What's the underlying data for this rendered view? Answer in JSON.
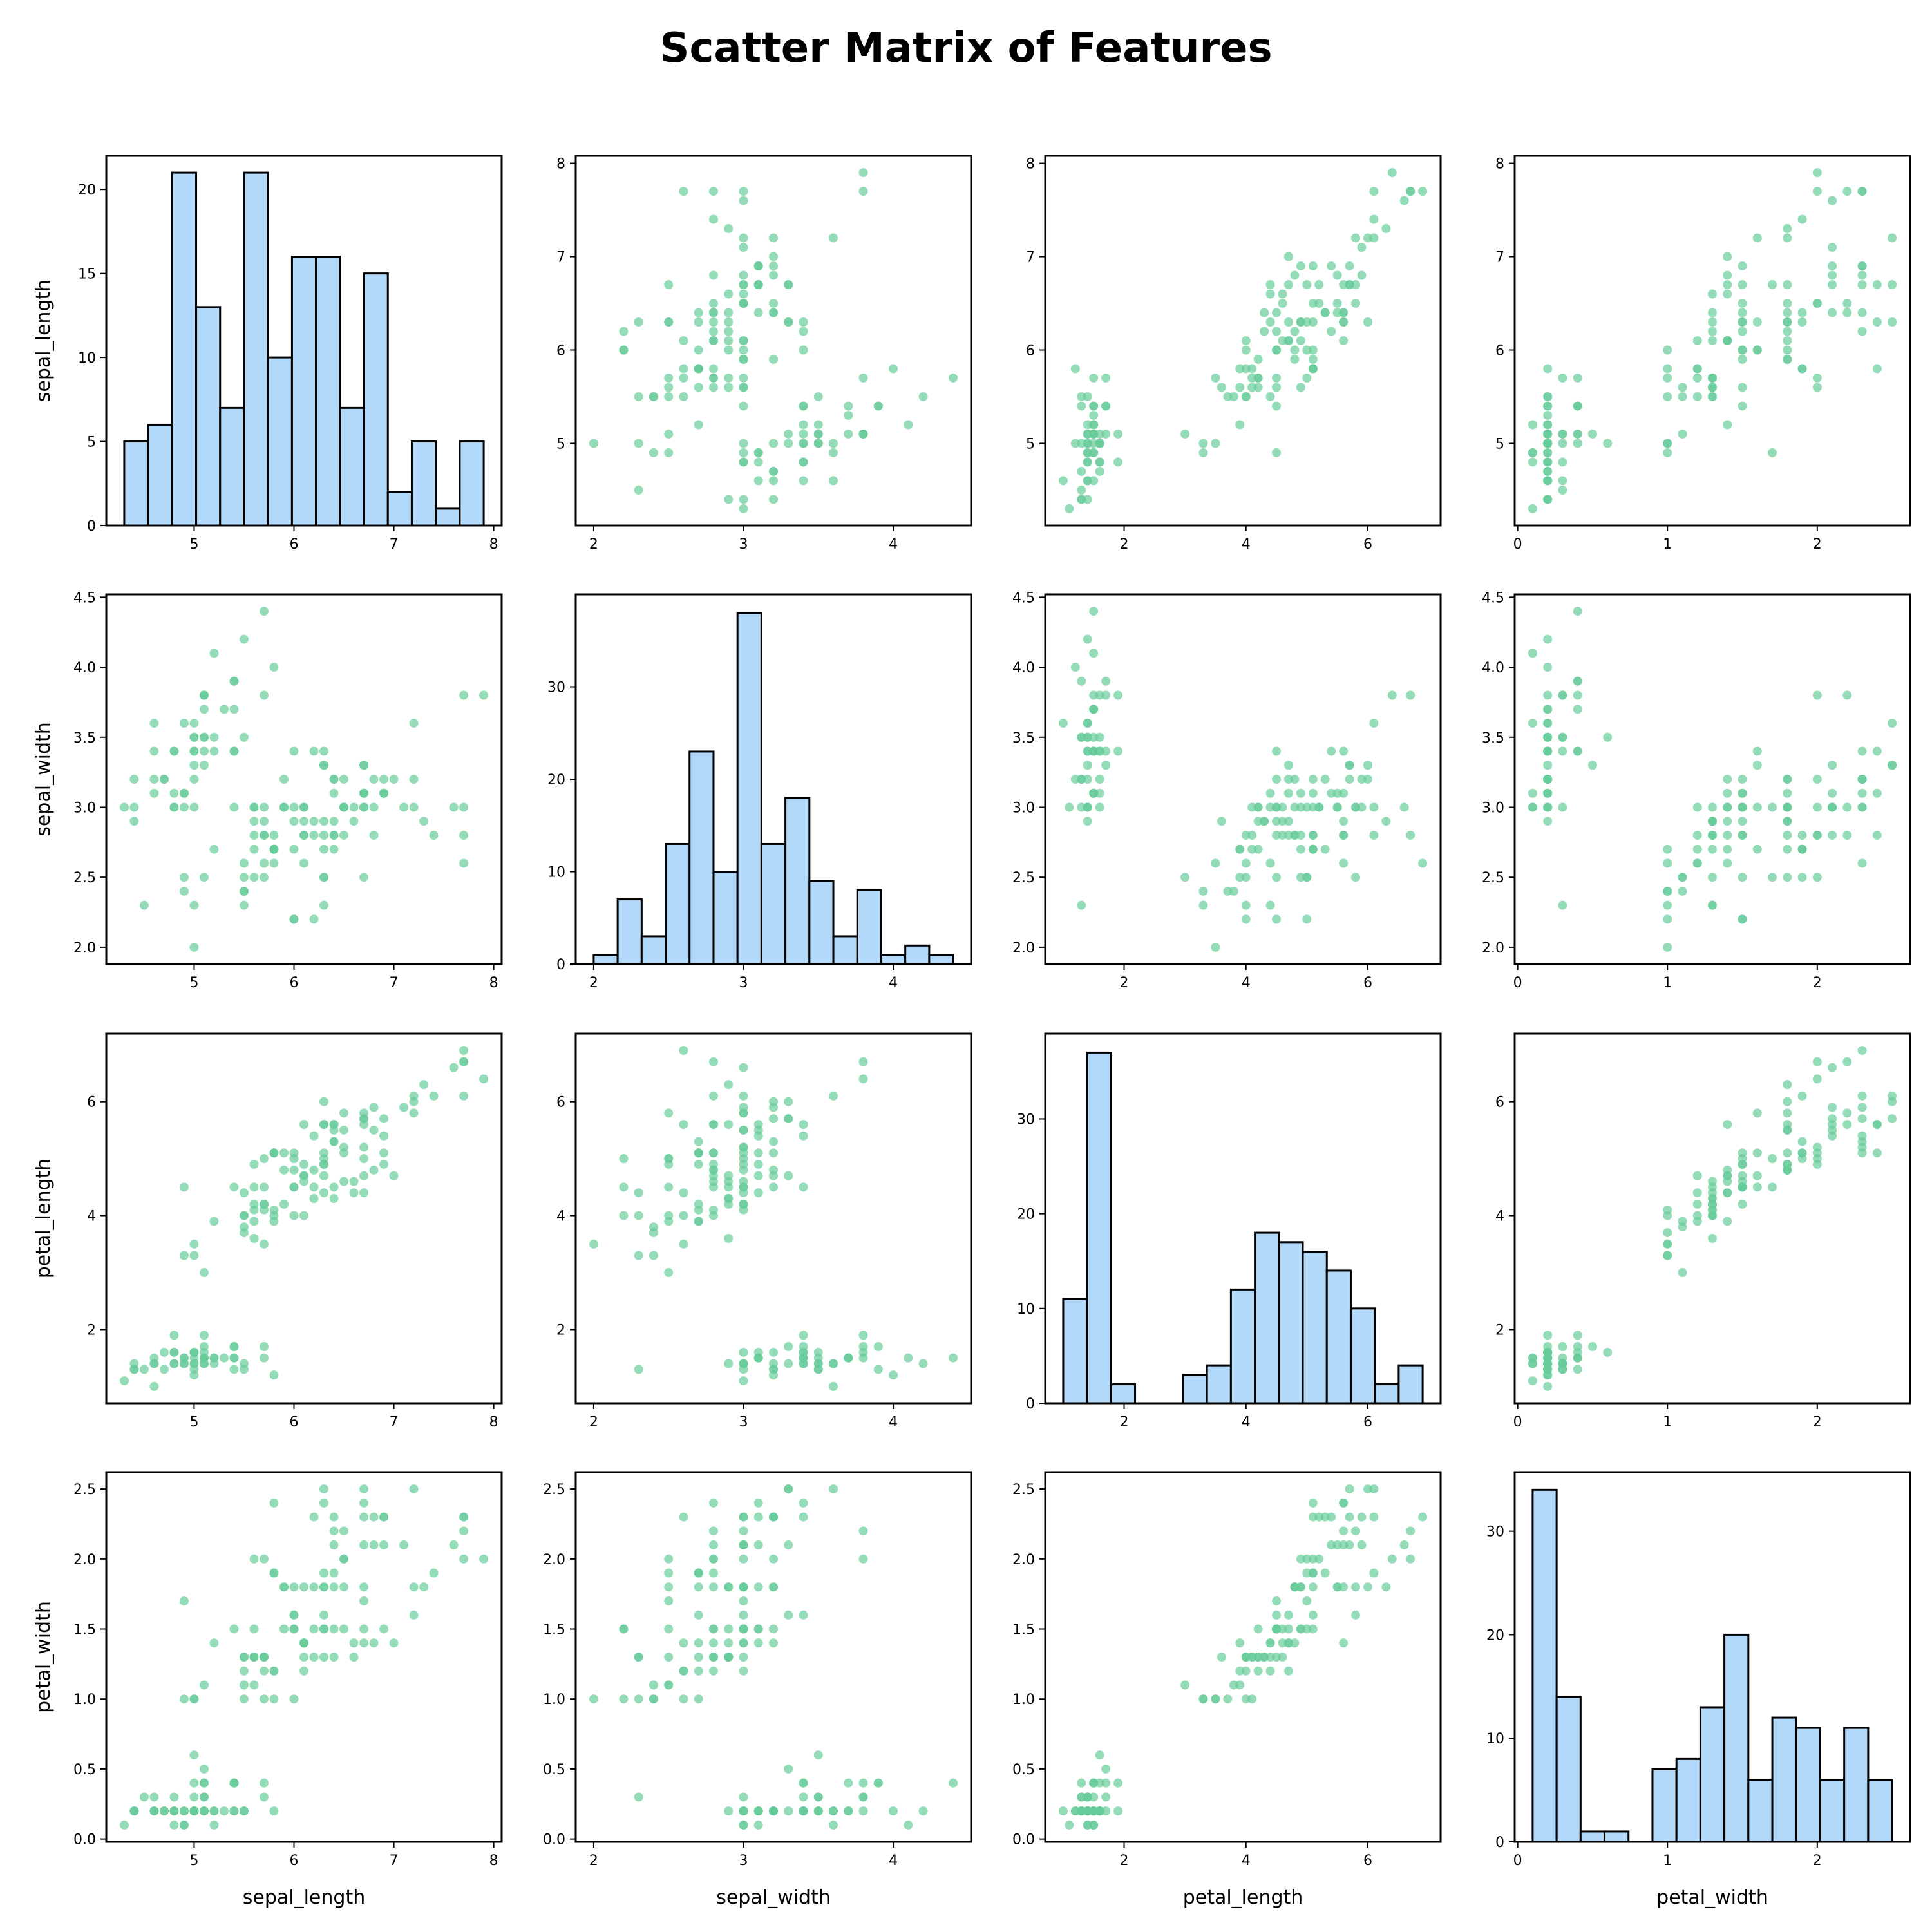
{
  "chart_data": {
    "type": "scatter_matrix",
    "title": "Scatter Matrix of Features",
    "features": [
      "sepal_length",
      "sepal_width",
      "petal_length",
      "petal_width"
    ],
    "diagonal": "histogram",
    "colors": {
      "scatter": "#66cc99",
      "hist_fill": "#b3d9fa",
      "hist_edge": "#000000"
    },
    "axes": {
      "sepal_length": {
        "lim": [
          4.12,
          8.08
        ],
        "ticks": [
          5,
          6,
          7,
          8
        ],
        "tick_labels": [
          "5",
          "6",
          "7",
          "8"
        ]
      },
      "sepal_width": {
        "lim": [
          1.88,
          4.52
        ],
        "ticks": [
          2.0,
          2.5,
          3.0,
          3.5,
          4.0,
          4.5
        ],
        "tick_labels": [
          "2.0",
          "2.5",
          "3.0",
          "3.5",
          "4.0",
          "4.5"
        ]
      },
      "petal_length": {
        "lim": [
          0.705,
          7.195
        ],
        "ticks": [
          2,
          4,
          6
        ],
        "tick_labels": [
          "2",
          "4",
          "6"
        ]
      },
      "petal_width": {
        "lim": [
          -0.02,
          2.62
        ],
        "ticks": [
          0.0,
          0.5,
          1.0,
          1.5,
          2.0,
          2.5
        ],
        "tick_labels": [
          "0.0",
          "0.5",
          "1.0",
          "1.5",
          "2.0",
          "2.5"
        ]
      }
    },
    "x_tick_labels": {
      "sepal_length": [
        "5",
        "6",
        "7",
        "8"
      ],
      "sepal_width": [
        "2",
        "3",
        "4"
      ],
      "petal_length": [
        "2",
        "4",
        "6"
      ],
      "petal_width": [
        "0",
        "1",
        "2"
      ]
    },
    "x_ticks": {
      "sepal_length": [
        5,
        6,
        7,
        8
      ],
      "sepal_width": [
        2,
        3,
        4
      ],
      "petal_length": [
        2,
        4,
        6
      ],
      "petal_width": [
        0,
        1,
        2
      ]
    },
    "histograms": [
      {
        "feature": "sepal_length",
        "bin_edges": [
          4.3,
          4.54,
          4.78,
          5.02,
          5.26,
          5.5,
          5.74,
          5.98,
          6.22,
          6.46,
          6.7,
          6.94,
          7.18,
          7.42,
          7.66,
          7.9
        ],
        "counts": [
          5,
          6,
          21,
          13,
          7,
          21,
          10,
          16,
          16,
          7,
          15,
          2,
          5,
          1,
          5
        ],
        "ylim": [
          0,
          22
        ],
        "yticks": [
          0,
          5,
          10,
          15,
          20
        ]
      },
      {
        "feature": "sepal_width",
        "bin_edges": [
          2.0,
          2.16,
          2.32,
          2.48,
          2.64,
          2.8,
          2.96,
          3.12,
          3.28,
          3.44,
          3.6,
          3.76,
          3.92,
          4.08,
          4.24,
          4.4
        ],
        "counts": [
          1,
          7,
          3,
          13,
          23,
          10,
          38,
          13,
          18,
          9,
          3,
          8,
          1,
          2,
          1
        ],
        "ylim": [
          0,
          40
        ],
        "yticks": [
          0,
          10,
          20,
          30
        ]
      },
      {
        "feature": "petal_length",
        "bin_edges": [
          1.0,
          1.393,
          1.787,
          2.18,
          2.573,
          2.967,
          3.36,
          3.753,
          4.147,
          4.54,
          4.933,
          5.327,
          5.72,
          6.113,
          6.507,
          6.9
        ],
        "counts": [
          11,
          37,
          2,
          0,
          0,
          3,
          4,
          12,
          18,
          17,
          16,
          14,
          10,
          2,
          4
        ],
        "ylim": [
          0,
          39
        ],
        "yticks": [
          0,
          10,
          20,
          30
        ]
      },
      {
        "feature": "petal_width",
        "bin_edges": [
          0.1,
          0.26,
          0.42,
          0.58,
          0.74,
          0.9,
          1.06,
          1.22,
          1.38,
          1.54,
          1.7,
          1.86,
          2.02,
          2.18,
          2.34,
          2.5
        ],
        "counts": [
          34,
          14,
          1,
          1,
          0,
          7,
          8,
          13,
          20,
          6,
          12,
          11,
          6,
          11,
          6
        ],
        "ylim": [
          0,
          35.7
        ],
        "yticks": [
          0,
          10,
          20,
          30
        ]
      }
    ],
    "samples": [
      [
        5.1,
        3.5,
        1.4,
        0.2
      ],
      [
        4.9,
        3.0,
        1.4,
        0.2
      ],
      [
        4.7,
        3.2,
        1.3,
        0.2
      ],
      [
        4.6,
        3.1,
        1.5,
        0.2
      ],
      [
        5.0,
        3.6,
        1.4,
        0.2
      ],
      [
        5.4,
        3.9,
        1.7,
        0.4
      ],
      [
        4.6,
        3.4,
        1.4,
        0.3
      ],
      [
        5.0,
        3.4,
        1.5,
        0.2
      ],
      [
        4.4,
        2.9,
        1.4,
        0.2
      ],
      [
        4.9,
        3.1,
        1.5,
        0.1
      ],
      [
        5.4,
        3.7,
        1.5,
        0.2
      ],
      [
        4.8,
        3.4,
        1.6,
        0.2
      ],
      [
        4.8,
        3.0,
        1.4,
        0.1
      ],
      [
        4.3,
        3.0,
        1.1,
        0.1
      ],
      [
        5.8,
        4.0,
        1.2,
        0.2
      ],
      [
        5.7,
        4.4,
        1.5,
        0.4
      ],
      [
        5.4,
        3.9,
        1.3,
        0.4
      ],
      [
        5.1,
        3.5,
        1.4,
        0.3
      ],
      [
        5.7,
        3.8,
        1.7,
        0.3
      ],
      [
        5.1,
        3.8,
        1.5,
        0.3
      ],
      [
        5.4,
        3.4,
        1.7,
        0.2
      ],
      [
        5.1,
        3.7,
        1.5,
        0.4
      ],
      [
        4.6,
        3.6,
        1.0,
        0.2
      ],
      [
        5.1,
        3.3,
        1.7,
        0.5
      ],
      [
        4.8,
        3.4,
        1.9,
        0.2
      ],
      [
        5.0,
        3.0,
        1.6,
        0.2
      ],
      [
        5.0,
        3.4,
        1.6,
        0.4
      ],
      [
        5.2,
        3.5,
        1.5,
        0.2
      ],
      [
        5.2,
        3.4,
        1.4,
        0.2
      ],
      [
        4.7,
        3.2,
        1.6,
        0.2
      ],
      [
        4.8,
        3.1,
        1.6,
        0.2
      ],
      [
        5.4,
        3.4,
        1.5,
        0.4
      ],
      [
        5.2,
        4.1,
        1.5,
        0.1
      ],
      [
        5.5,
        4.2,
        1.4,
        0.2
      ],
      [
        4.9,
        3.1,
        1.5,
        0.2
      ],
      [
        5.0,
        3.2,
        1.2,
        0.2
      ],
      [
        5.5,
        3.5,
        1.3,
        0.2
      ],
      [
        4.9,
        3.6,
        1.4,
        0.1
      ],
      [
        4.4,
        3.0,
        1.3,
        0.2
      ],
      [
        5.1,
        3.4,
        1.5,
        0.2
      ],
      [
        5.0,
        3.5,
        1.3,
        0.3
      ],
      [
        4.5,
        2.3,
        1.3,
        0.3
      ],
      [
        4.4,
        3.2,
        1.3,
        0.2
      ],
      [
        5.0,
        3.5,
        1.6,
        0.6
      ],
      [
        5.1,
        3.8,
        1.9,
        0.4
      ],
      [
        4.8,
        3.0,
        1.4,
        0.3
      ],
      [
        5.1,
        3.8,
        1.6,
        0.2
      ],
      [
        4.6,
        3.2,
        1.4,
        0.2
      ],
      [
        5.3,
        3.7,
        1.5,
        0.2
      ],
      [
        5.0,
        3.3,
        1.4,
        0.2
      ],
      [
        7.0,
        3.2,
        4.7,
        1.4
      ],
      [
        6.4,
        3.2,
        4.5,
        1.5
      ],
      [
        6.9,
        3.1,
        4.9,
        1.5
      ],
      [
        5.5,
        2.3,
        4.0,
        1.3
      ],
      [
        6.5,
        2.8,
        4.6,
        1.5
      ],
      [
        5.7,
        2.8,
        4.5,
        1.3
      ],
      [
        6.3,
        3.3,
        4.7,
        1.6
      ],
      [
        4.9,
        2.4,
        3.3,
        1.0
      ],
      [
        6.6,
        2.9,
        4.6,
        1.3
      ],
      [
        5.2,
        2.7,
        3.9,
        1.4
      ],
      [
        5.0,
        2.0,
        3.5,
        1.0
      ],
      [
        5.9,
        3.0,
        4.2,
        1.5
      ],
      [
        6.0,
        2.2,
        4.0,
        1.0
      ],
      [
        6.1,
        2.9,
        4.7,
        1.4
      ],
      [
        5.6,
        2.9,
        3.6,
        1.3
      ],
      [
        6.7,
        3.1,
        4.4,
        1.4
      ],
      [
        5.6,
        3.0,
        4.5,
        1.5
      ],
      [
        5.8,
        2.7,
        4.1,
        1.0
      ],
      [
        6.2,
        2.2,
        4.5,
        1.5
      ],
      [
        5.6,
        2.5,
        3.9,
        1.1
      ],
      [
        5.9,
        3.2,
        4.8,
        1.8
      ],
      [
        6.1,
        2.8,
        4.0,
        1.3
      ],
      [
        6.3,
        2.5,
        4.9,
        1.5
      ],
      [
        6.1,
        2.8,
        4.7,
        1.2
      ],
      [
        6.4,
        2.9,
        4.3,
        1.3
      ],
      [
        6.6,
        3.0,
        4.4,
        1.4
      ],
      [
        6.8,
        2.8,
        4.8,
        1.4
      ],
      [
        6.7,
        3.0,
        5.0,
        1.7
      ],
      [
        6.0,
        2.9,
        4.5,
        1.5
      ],
      [
        5.7,
        2.6,
        3.5,
        1.0
      ],
      [
        5.5,
        2.4,
        3.8,
        1.1
      ],
      [
        5.5,
        2.4,
        3.7,
        1.0
      ],
      [
        5.8,
        2.7,
        3.9,
        1.2
      ],
      [
        6.0,
        2.7,
        5.1,
        1.6
      ],
      [
        5.4,
        3.0,
        4.5,
        1.5
      ],
      [
        6.0,
        3.4,
        4.5,
        1.6
      ],
      [
        6.7,
        3.1,
        4.7,
        1.5
      ],
      [
        6.3,
        2.3,
        4.4,
        1.3
      ],
      [
        5.6,
        3.0,
        4.1,
        1.3
      ],
      [
        5.5,
        2.5,
        4.0,
        1.3
      ],
      [
        5.5,
        2.6,
        4.4,
        1.2
      ],
      [
        6.1,
        3.0,
        4.6,
        1.4
      ],
      [
        5.8,
        2.6,
        4.0,
        1.2
      ],
      [
        5.0,
        2.3,
        3.3,
        1.0
      ],
      [
        5.6,
        2.7,
        4.2,
        1.3
      ],
      [
        5.7,
        3.0,
        4.2,
        1.2
      ],
      [
        5.7,
        2.9,
        4.2,
        1.3
      ],
      [
        6.2,
        2.9,
        4.3,
        1.3
      ],
      [
        5.1,
        2.5,
        3.0,
        1.1
      ],
      [
        5.7,
        2.8,
        4.1,
        1.3
      ],
      [
        6.3,
        3.3,
        6.0,
        2.5
      ],
      [
        5.8,
        2.7,
        5.1,
        1.9
      ],
      [
        7.1,
        3.0,
        5.9,
        2.1
      ],
      [
        6.3,
        2.9,
        5.6,
        1.8
      ],
      [
        6.5,
        3.0,
        5.8,
        2.2
      ],
      [
        7.6,
        3.0,
        6.6,
        2.1
      ],
      [
        4.9,
        2.5,
        4.5,
        1.7
      ],
      [
        7.3,
        2.9,
        6.3,
        1.8
      ],
      [
        6.7,
        2.5,
        5.8,
        1.8
      ],
      [
        7.2,
        3.6,
        6.1,
        2.5
      ],
      [
        6.5,
        3.2,
        5.1,
        2.0
      ],
      [
        6.4,
        2.7,
        5.3,
        1.9
      ],
      [
        6.8,
        3.0,
        5.5,
        2.1
      ],
      [
        5.7,
        2.5,
        5.0,
        2.0
      ],
      [
        5.8,
        2.8,
        5.1,
        2.4
      ],
      [
        6.4,
        3.2,
        5.3,
        2.3
      ],
      [
        6.5,
        3.0,
        5.5,
        1.8
      ],
      [
        7.7,
        3.8,
        6.7,
        2.2
      ],
      [
        7.7,
        2.6,
        6.9,
        2.3
      ],
      [
        6.0,
        2.2,
        5.0,
        1.5
      ],
      [
        6.9,
        3.2,
        5.7,
        2.3
      ],
      [
        5.6,
        2.8,
        4.9,
        2.0
      ],
      [
        7.7,
        2.8,
        6.7,
        2.0
      ],
      [
        6.3,
        2.7,
        4.9,
        1.8
      ],
      [
        6.7,
        3.3,
        5.7,
        2.1
      ],
      [
        7.2,
        3.2,
        6.0,
        1.8
      ],
      [
        6.2,
        2.8,
        4.8,
        1.8
      ],
      [
        6.1,
        3.0,
        4.9,
        1.8
      ],
      [
        6.4,
        2.8,
        5.6,
        2.1
      ],
      [
        7.2,
        3.0,
        5.8,
        1.6
      ],
      [
        7.4,
        2.8,
        6.1,
        1.9
      ],
      [
        7.9,
        3.8,
        6.4,
        2.0
      ],
      [
        6.4,
        2.8,
        5.6,
        2.2
      ],
      [
        6.3,
        2.8,
        5.1,
        1.5
      ],
      [
        6.1,
        2.6,
        5.6,
        1.4
      ],
      [
        7.7,
        3.0,
        6.1,
        2.3
      ],
      [
        6.3,
        3.4,
        5.6,
        2.4
      ],
      [
        6.4,
        3.1,
        5.5,
        1.8
      ],
      [
        6.0,
        3.0,
        4.8,
        1.8
      ],
      [
        6.9,
        3.1,
        5.4,
        2.1
      ],
      [
        6.7,
        3.1,
        5.6,
        2.4
      ],
      [
        6.9,
        3.1,
        5.1,
        2.3
      ],
      [
        5.8,
        2.7,
        5.1,
        1.9
      ],
      [
        6.8,
        3.2,
        5.9,
        2.3
      ],
      [
        6.7,
        3.3,
        5.7,
        2.5
      ],
      [
        6.7,
        3.0,
        5.2,
        2.3
      ],
      [
        6.3,
        2.5,
        5.0,
        1.9
      ],
      [
        6.5,
        3.0,
        5.2,
        2.0
      ],
      [
        6.2,
        3.4,
        5.4,
        2.3
      ],
      [
        5.9,
        3.0,
        5.1,
        1.8
      ]
    ]
  }
}
